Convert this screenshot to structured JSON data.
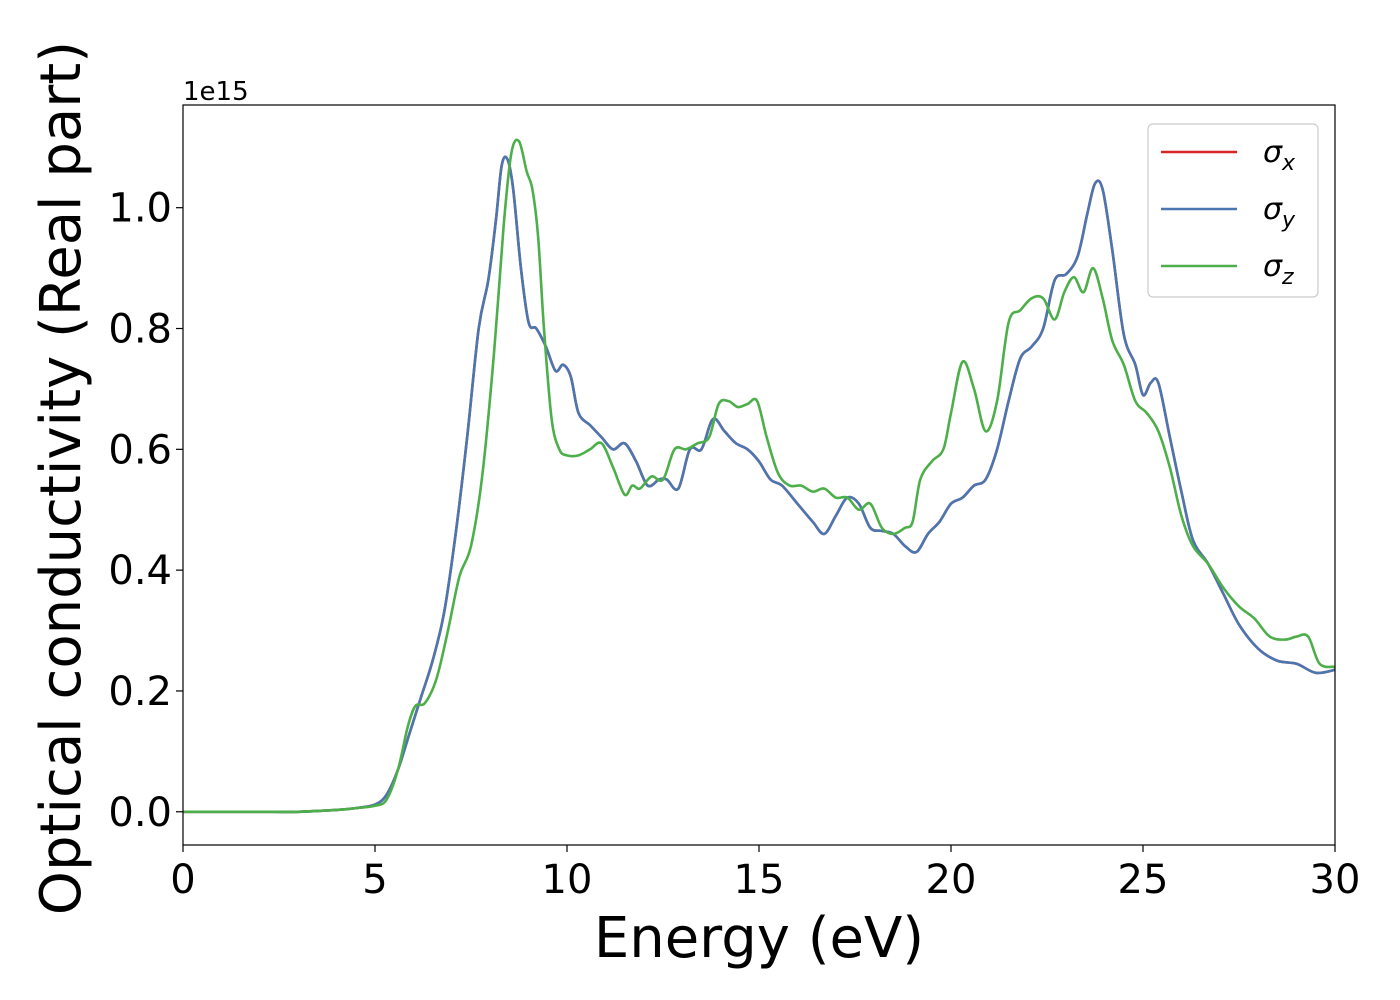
{
  "chart_data": {
    "type": "line",
    "xlabel": "Energy (eV)",
    "ylabel": "Optical conductivity (Real part)",
    "offset_text": "1e15",
    "xlim": [
      0,
      30
    ],
    "ylim": [
      -0.055,
      1.17
    ],
    "x_ticks": [
      0,
      5,
      10,
      15,
      20,
      25,
      30
    ],
    "x_tick_labels": [
      "0",
      "5",
      "10",
      "15",
      "20",
      "25",
      "30"
    ],
    "y_ticks": [
      0.0,
      0.2,
      0.4,
      0.6,
      0.8,
      1.0
    ],
    "y_tick_labels": [
      "0.0",
      "0.2",
      "0.4",
      "0.6",
      "0.8",
      "1.0"
    ],
    "grid": false,
    "legend_position": "top-right",
    "series": [
      {
        "symbol": "σ",
        "subscript": "x",
        "color": "#d62728",
        "x": [
          0,
          1,
          2,
          3,
          4,
          4.5,
          5,
          5.3,
          5.6,
          5.9,
          6.2,
          6.5,
          6.8,
          7.1,
          7.4,
          7.7,
          7.95,
          8.15,
          8.3,
          8.45,
          8.6,
          8.8,
          9.0,
          9.2,
          9.45,
          9.7,
          9.9,
          10.1,
          10.3,
          10.6,
          10.9,
          11.2,
          11.5,
          11.8,
          12.1,
          12.4,
          12.6,
          12.9,
          13.2,
          13.5,
          13.8,
          14.1,
          14.4,
          14.7,
          15.0,
          15.3,
          15.6,
          16.0,
          16.4,
          16.7,
          17.0,
          17.3,
          17.6,
          17.9,
          18.2,
          18.5,
          18.8,
          19.1,
          19.4,
          19.7,
          20.0,
          20.3,
          20.6,
          20.9,
          21.2,
          21.5,
          21.8,
          22.1,
          22.4,
          22.7,
          23.0,
          23.3,
          23.55,
          23.75,
          23.95,
          24.2,
          24.5,
          24.8,
          25.0,
          25.2,
          25.4,
          25.7,
          26.0,
          26.3,
          26.7,
          27.1,
          27.5,
          28.0,
          28.5,
          29.0,
          29.5,
          30.0
        ],
        "y": [
          0.0,
          0.0,
          0.0,
          0.0,
          0.003,
          0.006,
          0.012,
          0.028,
          0.07,
          0.13,
          0.19,
          0.25,
          0.33,
          0.46,
          0.62,
          0.8,
          0.88,
          0.98,
          1.07,
          1.08,
          1.03,
          0.9,
          0.81,
          0.8,
          0.77,
          0.73,
          0.74,
          0.72,
          0.66,
          0.64,
          0.62,
          0.6,
          0.61,
          0.58,
          0.54,
          0.55,
          0.55,
          0.535,
          0.6,
          0.6,
          0.65,
          0.63,
          0.61,
          0.6,
          0.58,
          0.55,
          0.54,
          0.51,
          0.48,
          0.46,
          0.49,
          0.52,
          0.51,
          0.47,
          0.465,
          0.46,
          0.44,
          0.43,
          0.46,
          0.48,
          0.51,
          0.52,
          0.54,
          0.55,
          0.6,
          0.68,
          0.75,
          0.77,
          0.8,
          0.88,
          0.89,
          0.92,
          0.99,
          1.04,
          1.03,
          0.93,
          0.79,
          0.74,
          0.69,
          0.71,
          0.71,
          0.62,
          0.53,
          0.45,
          0.41,
          0.36,
          0.31,
          0.27,
          0.25,
          0.245,
          0.23,
          0.235
        ]
      },
      {
        "symbol": "σ",
        "subscript": "y",
        "color": "#4a77b0",
        "x": [
          0,
          1,
          2,
          3,
          4,
          4.5,
          5,
          5.3,
          5.6,
          5.9,
          6.2,
          6.5,
          6.8,
          7.1,
          7.4,
          7.7,
          7.95,
          8.15,
          8.3,
          8.45,
          8.6,
          8.8,
          9.0,
          9.2,
          9.45,
          9.7,
          9.9,
          10.1,
          10.3,
          10.6,
          10.9,
          11.2,
          11.5,
          11.8,
          12.1,
          12.4,
          12.6,
          12.9,
          13.2,
          13.5,
          13.8,
          14.1,
          14.4,
          14.7,
          15.0,
          15.3,
          15.6,
          16.0,
          16.4,
          16.7,
          17.0,
          17.3,
          17.6,
          17.9,
          18.2,
          18.5,
          18.8,
          19.1,
          19.4,
          19.7,
          20.0,
          20.3,
          20.6,
          20.9,
          21.2,
          21.5,
          21.8,
          22.1,
          22.4,
          22.7,
          23.0,
          23.3,
          23.55,
          23.75,
          23.95,
          24.2,
          24.5,
          24.8,
          25.0,
          25.2,
          25.4,
          25.7,
          26.0,
          26.3,
          26.7,
          27.1,
          27.5,
          28.0,
          28.5,
          29.0,
          29.5,
          30.0
        ],
        "y": [
          0.0,
          0.0,
          0.0,
          0.0,
          0.003,
          0.006,
          0.012,
          0.028,
          0.07,
          0.13,
          0.19,
          0.25,
          0.33,
          0.46,
          0.62,
          0.8,
          0.88,
          0.98,
          1.07,
          1.08,
          1.03,
          0.9,
          0.81,
          0.8,
          0.77,
          0.73,
          0.74,
          0.72,
          0.66,
          0.64,
          0.62,
          0.6,
          0.61,
          0.58,
          0.54,
          0.55,
          0.55,
          0.535,
          0.6,
          0.6,
          0.65,
          0.63,
          0.61,
          0.6,
          0.58,
          0.55,
          0.54,
          0.51,
          0.48,
          0.46,
          0.49,
          0.52,
          0.51,
          0.47,
          0.465,
          0.46,
          0.44,
          0.43,
          0.46,
          0.48,
          0.51,
          0.52,
          0.54,
          0.55,
          0.6,
          0.68,
          0.75,
          0.77,
          0.8,
          0.88,
          0.89,
          0.92,
          0.99,
          1.04,
          1.03,
          0.93,
          0.79,
          0.74,
          0.69,
          0.71,
          0.71,
          0.62,
          0.53,
          0.45,
          0.41,
          0.36,
          0.31,
          0.27,
          0.25,
          0.245,
          0.23,
          0.235
        ]
      },
      {
        "symbol": "σ",
        "subscript": "z",
        "color": "#4daf4a",
        "x": [
          0,
          1,
          2,
          3,
          4,
          4.5,
          5,
          5.3,
          5.6,
          5.85,
          6.05,
          6.3,
          6.6,
          6.9,
          7.2,
          7.5,
          7.8,
          8.1,
          8.35,
          8.55,
          8.75,
          8.95,
          9.1,
          9.25,
          9.4,
          9.6,
          9.8,
          10.0,
          10.3,
          10.6,
          10.9,
          11.2,
          11.5,
          11.7,
          11.9,
          12.2,
          12.5,
          12.8,
          13.1,
          13.4,
          13.7,
          13.95,
          14.2,
          14.45,
          14.7,
          14.95,
          15.2,
          15.5,
          15.8,
          16.1,
          16.4,
          16.7,
          17.0,
          17.3,
          17.6,
          17.9,
          18.2,
          18.5,
          18.8,
          19.0,
          19.2,
          19.5,
          19.8,
          20.0,
          20.3,
          20.6,
          20.9,
          21.2,
          21.5,
          21.8,
          22.1,
          22.4,
          22.7,
          22.95,
          23.2,
          23.45,
          23.7,
          23.95,
          24.2,
          24.5,
          24.8,
          25.1,
          25.4,
          25.7,
          26.0,
          26.3,
          26.7,
          27.1,
          27.5,
          27.9,
          28.3,
          28.7,
          29.0,
          29.3,
          29.6,
          30.0
        ],
        "y": [
          0.0,
          0.0,
          0.0,
          0.0,
          0.003,
          0.006,
          0.01,
          0.02,
          0.07,
          0.14,
          0.175,
          0.18,
          0.22,
          0.3,
          0.39,
          0.44,
          0.56,
          0.76,
          0.97,
          1.09,
          1.11,
          1.06,
          1.03,
          0.95,
          0.8,
          0.65,
          0.6,
          0.59,
          0.59,
          0.6,
          0.61,
          0.57,
          0.525,
          0.54,
          0.535,
          0.555,
          0.55,
          0.6,
          0.6,
          0.61,
          0.62,
          0.675,
          0.68,
          0.67,
          0.675,
          0.68,
          0.62,
          0.56,
          0.54,
          0.54,
          0.53,
          0.535,
          0.52,
          0.52,
          0.5,
          0.51,
          0.47,
          0.46,
          0.47,
          0.48,
          0.55,
          0.58,
          0.6,
          0.66,
          0.745,
          0.7,
          0.63,
          0.68,
          0.81,
          0.83,
          0.85,
          0.85,
          0.815,
          0.86,
          0.885,
          0.86,
          0.9,
          0.85,
          0.78,
          0.74,
          0.68,
          0.66,
          0.63,
          0.57,
          0.49,
          0.44,
          0.41,
          0.37,
          0.34,
          0.32,
          0.29,
          0.285,
          0.29,
          0.29,
          0.245,
          0.24
        ]
      }
    ]
  }
}
